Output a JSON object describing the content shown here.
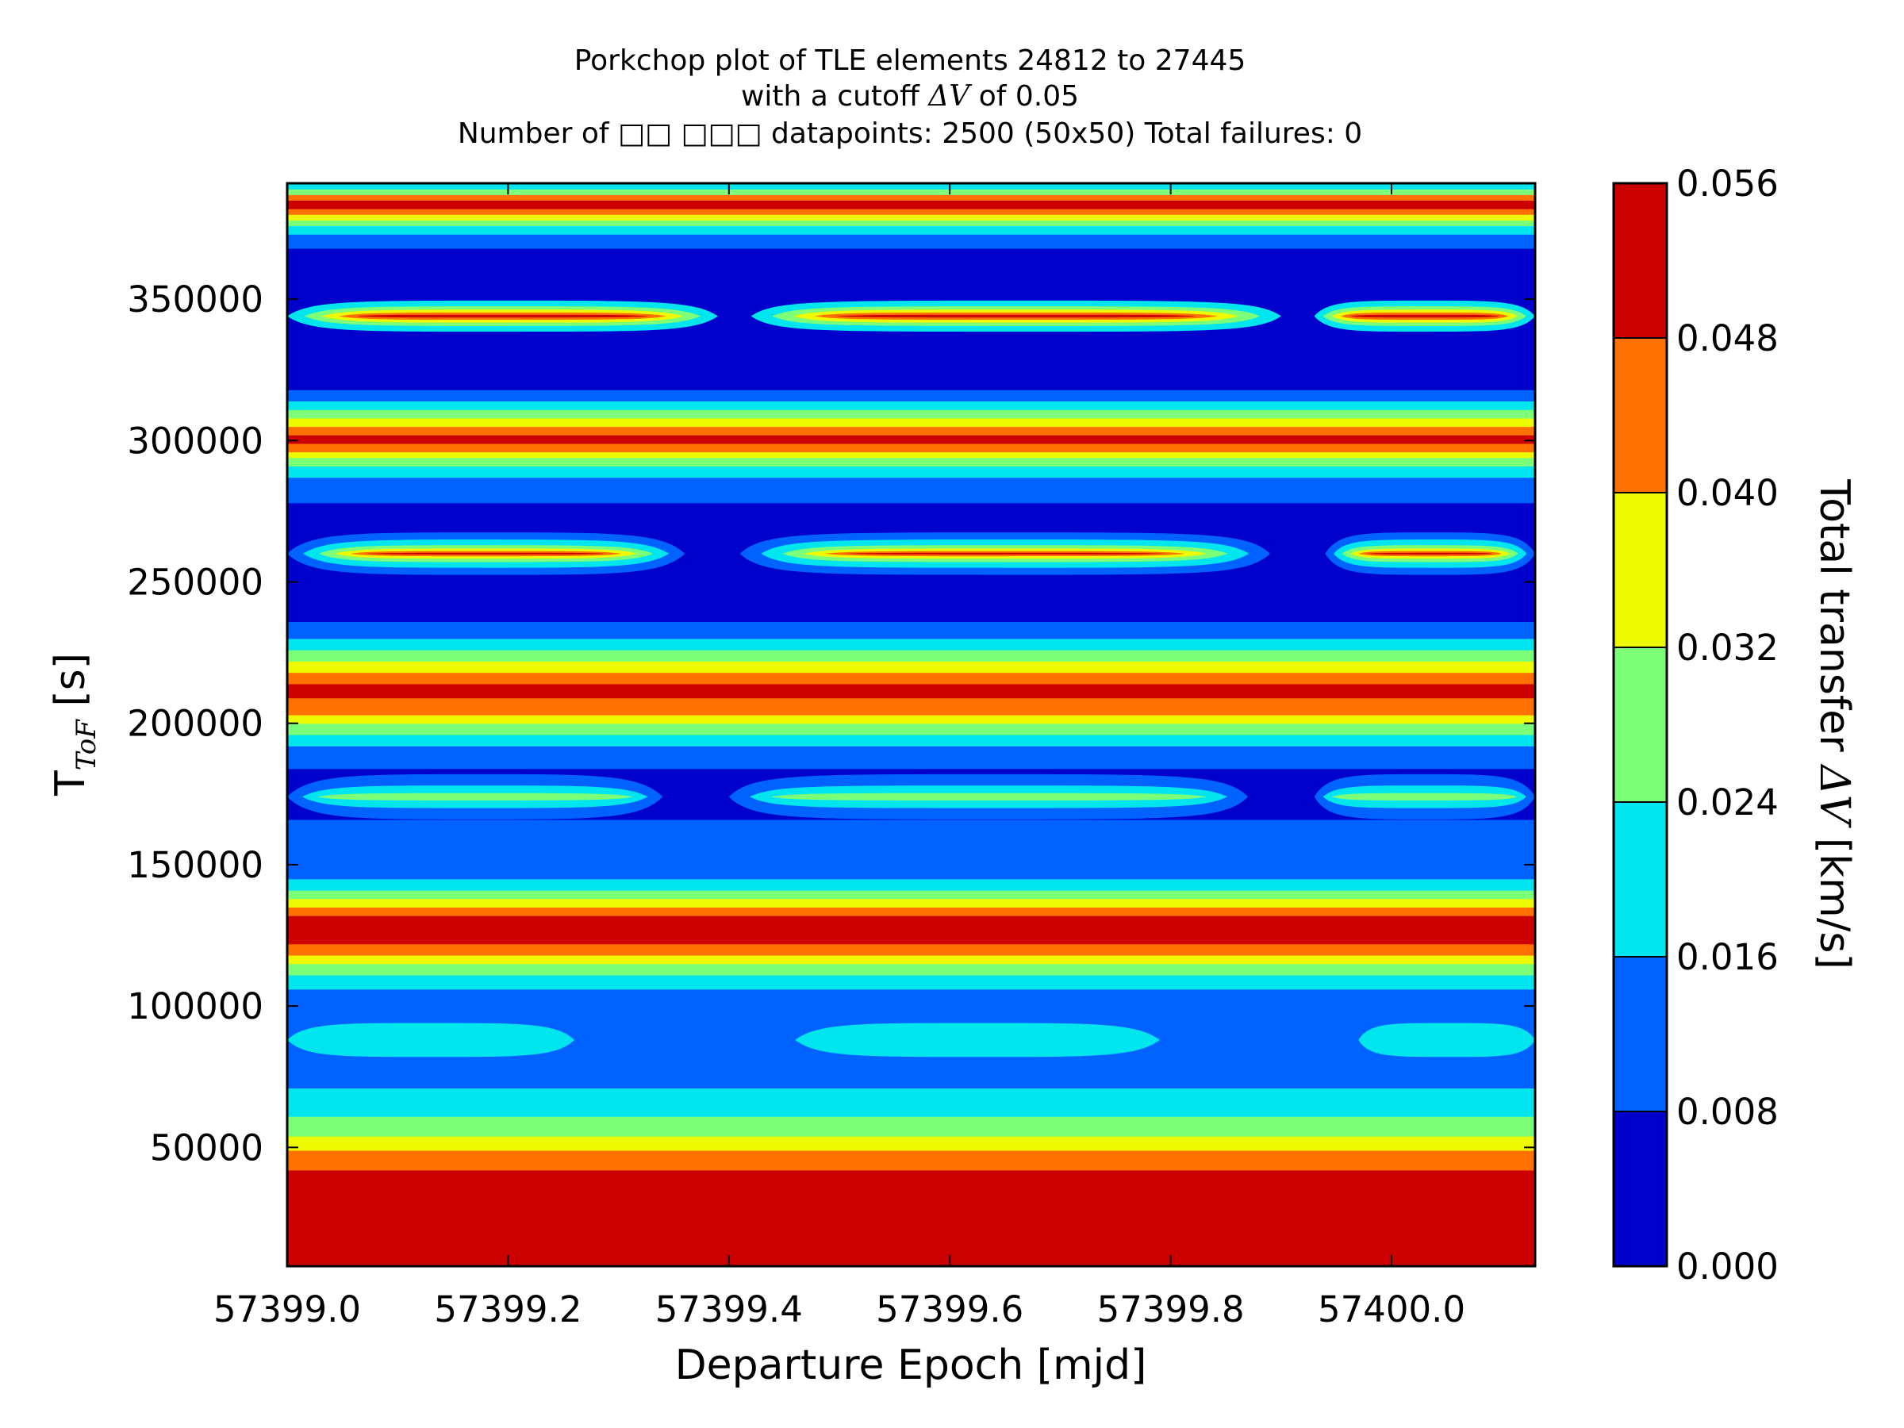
{
  "chart_data": {
    "type": "heatmap",
    "subtype": "filled-contour",
    "title": {
      "line1": "Porkchop plot of TLE elements 24812 to 27445",
      "line2_pre": "with a cutoff ",
      "line2_delta": "ΔV",
      "line2_post": " of 0.05",
      "line3": "Number of □□  □□□  datapoints: 2500 (50x50) Total failures: 0"
    },
    "xlabel": "Departure Epoch [mjd]",
    "ylabel": {
      "main": "T",
      "sub": "ToF",
      "unit": " [s]"
    },
    "xlim": [
      57399.0,
      57400.13
    ],
    "ylim": [
      8000,
      391000
    ],
    "xticks": [
      57399.0,
      57399.2,
      57399.4,
      57399.6,
      57399.8,
      57400.0
    ],
    "xtick_labels": [
      "57399.0",
      "57399.2",
      "57399.4",
      "57399.6",
      "57399.8",
      "57400.0"
    ],
    "yticks": [
      50000,
      100000,
      150000,
      200000,
      250000,
      300000,
      350000
    ],
    "ytick_labels": [
      "50000",
      "100000",
      "150000",
      "200000",
      "250000",
      "300000",
      "350000"
    ],
    "colorbar": {
      "label_pre": "Total transfer ",
      "label_delta": "ΔV",
      "label_post": " [km/s]",
      "levels": [
        0.0,
        0.008,
        0.016,
        0.024,
        0.032,
        0.04,
        0.048,
        0.056
      ],
      "level_labels": [
        "0.000",
        "0.008",
        "0.016",
        "0.024",
        "0.032",
        "0.040",
        "0.048",
        "0.056"
      ],
      "colors": [
        "#0000cd",
        "#0062ff",
        "#00e5ee",
        "#7cff79",
        "#eefa00",
        "#ff7100",
        "#cd0000"
      ]
    },
    "bands": [
      {
        "ymin": 8000,
        "ymax": 42000,
        "level": 6
      },
      {
        "ymin": 42000,
        "ymax": 49000,
        "level": 5
      },
      {
        "ymin": 49000,
        "ymax": 54000,
        "level": 4
      },
      {
        "ymin": 54000,
        "ymax": 61000,
        "level": 3
      },
      {
        "ymin": 61000,
        "ymax": 71000,
        "level": 2
      },
      {
        "ymin": 71000,
        "ymax": 106000,
        "level": 1
      },
      {
        "ymin": 106000,
        "ymax": 111000,
        "level": 2
      },
      {
        "ymin": 111000,
        "ymax": 115000,
        "level": 3
      },
      {
        "ymin": 115000,
        "ymax": 118000,
        "level": 4
      },
      {
        "ymin": 118000,
        "ymax": 122000,
        "level": 5
      },
      {
        "ymin": 122000,
        "ymax": 132000,
        "level": 6
      },
      {
        "ymin": 132000,
        "ymax": 135000,
        "level": 5
      },
      {
        "ymin": 135000,
        "ymax": 138000,
        "level": 4
      },
      {
        "ymin": 138000,
        "ymax": 141000,
        "level": 3
      },
      {
        "ymin": 141000,
        "ymax": 145000,
        "level": 2
      },
      {
        "ymin": 145000,
        "ymax": 166000,
        "level": 1
      },
      {
        "ymin": 166000,
        "ymax": 184000,
        "level": 0
      },
      {
        "ymin": 184000,
        "ymax": 192000,
        "level": 1
      },
      {
        "ymin": 192000,
        "ymax": 196000,
        "level": 2
      },
      {
        "ymin": 196000,
        "ymax": 200000,
        "level": 3
      },
      {
        "ymin": 200000,
        "ymax": 203000,
        "level": 4
      },
      {
        "ymin": 203000,
        "ymax": 209000,
        "level": 5
      },
      {
        "ymin": 209000,
        "ymax": 214000,
        "level": 6
      },
      {
        "ymin": 214000,
        "ymax": 218000,
        "level": 5
      },
      {
        "ymin": 218000,
        "ymax": 222000,
        "level": 4
      },
      {
        "ymin": 222000,
        "ymax": 226000,
        "level": 3
      },
      {
        "ymin": 226000,
        "ymax": 230000,
        "level": 2
      },
      {
        "ymin": 230000,
        "ymax": 236000,
        "level": 1
      },
      {
        "ymin": 236000,
        "ymax": 278000,
        "level": 0
      },
      {
        "ymin": 278000,
        "ymax": 287000,
        "level": 1
      },
      {
        "ymin": 287000,
        "ymax": 291000,
        "level": 2
      },
      {
        "ymin": 291000,
        "ymax": 294000,
        "level": 3
      },
      {
        "ymin": 294000,
        "ymax": 296000,
        "level": 4
      },
      {
        "ymin": 296000,
        "ymax": 299000,
        "level": 5
      },
      {
        "ymin": 299000,
        "ymax": 302000,
        "level": 6
      },
      {
        "ymin": 302000,
        "ymax": 305000,
        "level": 5
      },
      {
        "ymin": 305000,
        "ymax": 308000,
        "level": 4
      },
      {
        "ymin": 308000,
        "ymax": 311000,
        "level": 3
      },
      {
        "ymin": 311000,
        "ymax": 314000,
        "level": 2
      },
      {
        "ymin": 314000,
        "ymax": 318000,
        "level": 1
      },
      {
        "ymin": 318000,
        "ymax": 368000,
        "level": 0
      },
      {
        "ymin": 368000,
        "ymax": 373000,
        "level": 1
      },
      {
        "ymin": 373000,
        "ymax": 376000,
        "level": 2
      },
      {
        "ymin": 376000,
        "ymax": 378000,
        "level": 3
      },
      {
        "ymin": 378000,
        "ymax": 380000,
        "level": 4
      },
      {
        "ymin": 380000,
        "ymax": 382000,
        "level": 5
      },
      {
        "ymin": 382000,
        "ymax": 385000,
        "level": 6
      },
      {
        "ymin": 385000,
        "ymax": 387000,
        "level": 5
      },
      {
        "ymin": 387000,
        "ymax": 389000,
        "level": 3
      },
      {
        "ymin": 389000,
        "ymax": 391000,
        "level": 2
      }
    ],
    "islands": [
      {
        "yc": 88000,
        "segments": [
          [
            57399.0,
            57399.26
          ],
          [
            57399.46,
            57399.79
          ],
          [
            57399.97,
            57400.13
          ]
        ],
        "layers": [
          {
            "level": 2,
            "hh": 6000
          }
        ]
      },
      {
        "yc": 174000,
        "segments": [
          [
            57399.0,
            57399.34
          ],
          [
            57399.4,
            57399.87
          ],
          [
            57399.93,
            57400.13
          ]
        ],
        "layers": [
          {
            "level": 1,
            "hh": 8000
          },
          {
            "level": 2,
            "hh": 4000
          },
          {
            "level": 3,
            "hh": 1300
          }
        ]
      },
      {
        "yc": 260000,
        "segments": [
          [
            57399.0,
            57399.36
          ],
          [
            57399.41,
            57399.89
          ],
          [
            57399.94,
            57400.13
          ]
        ],
        "layers": [
          {
            "level": 1,
            "hh": 7500
          },
          {
            "level": 2,
            "hh": 5000
          },
          {
            "level": 3,
            "hh": 3000
          },
          {
            "level": 4,
            "hh": 1800
          },
          {
            "level": 5,
            "hh": 900
          },
          {
            "level": 6,
            "hh": 300
          }
        ]
      },
      {
        "yc": 344000,
        "segments": [
          [
            57399.0,
            57399.39
          ],
          [
            57399.42,
            57399.9
          ],
          [
            57399.93,
            57400.13
          ]
        ],
        "layers": [
          {
            "level": 2,
            "hh": 5500
          },
          {
            "level": 3,
            "hh": 3500
          },
          {
            "level": 4,
            "hh": 2300
          },
          {
            "level": 5,
            "hh": 1300
          },
          {
            "level": 6,
            "hh": 500
          }
        ]
      }
    ]
  }
}
